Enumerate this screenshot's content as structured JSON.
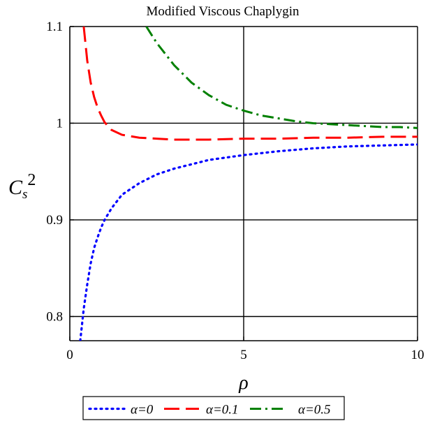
{
  "chart_data": {
    "type": "line",
    "title": "Modified Viscous Chaplygin",
    "xlabel": "ρ",
    "ylabel": {
      "base": "C",
      "sub": "s",
      "sup": "2"
    },
    "xlim": [
      0,
      10
    ],
    "ylim": [
      0.775,
      1.1
    ],
    "x_ticks": [
      0,
      5,
      10
    ],
    "y_ticks": [
      0.8,
      0.9,
      1,
      1.1
    ],
    "x_tick_labels": [
      "0",
      "5",
      "10"
    ],
    "y_tick_labels": [
      "0.8",
      "0.9",
      "1",
      "1.1"
    ],
    "grid": true,
    "legend_position": "bottom",
    "series": [
      {
        "name": "α=0",
        "color": "#0000ff",
        "dash": "dotted",
        "x": [
          0.3,
          0.4,
          0.5,
          0.6,
          0.7,
          0.8,
          0.9,
          1.0,
          1.2,
          1.5,
          2.0,
          2.5,
          3.0,
          4.0,
          5.0,
          6.0,
          7.0,
          8.0,
          9.0,
          10.0
        ],
        "y": [
          0.775,
          0.808,
          0.833,
          0.855,
          0.871,
          0.882,
          0.892,
          0.9,
          0.912,
          0.926,
          0.938,
          0.947,
          0.953,
          0.962,
          0.967,
          0.971,
          0.974,
          0.976,
          0.977,
          0.978
        ]
      },
      {
        "name": "α=0.1",
        "color": "#ff0000",
        "dash": "dashed",
        "x": [
          0.4,
          0.5,
          0.6,
          0.7,
          0.8,
          0.9,
          1.0,
          1.2,
          1.5,
          2.0,
          2.5,
          3.0,
          4.0,
          5.0,
          6.0,
          7.0,
          8.0,
          9.0,
          10.0
        ],
        "y": [
          1.1,
          1.065,
          1.042,
          1.027,
          1.016,
          1.008,
          1.001,
          0.993,
          0.988,
          0.985,
          0.984,
          0.983,
          0.983,
          0.984,
          0.984,
          0.985,
          0.985,
          0.986,
          0.986
        ]
      },
      {
        "name": "α=0.5",
        "color": "#008000",
        "dash": "dashdot",
        "x": [
          2.2,
          2.5,
          3.0,
          3.5,
          4.0,
          4.5,
          5.0,
          5.5,
          6.0,
          6.5,
          7.0,
          7.5,
          8.0,
          8.5,
          9.0,
          9.5,
          10.0
        ],
        "y": [
          1.1,
          1.083,
          1.06,
          1.042,
          1.029,
          1.019,
          1.013,
          1.008,
          1.005,
          1.002,
          1.0,
          0.999,
          0.998,
          0.997,
          0.996,
          0.996,
          0.995
        ]
      }
    ]
  }
}
